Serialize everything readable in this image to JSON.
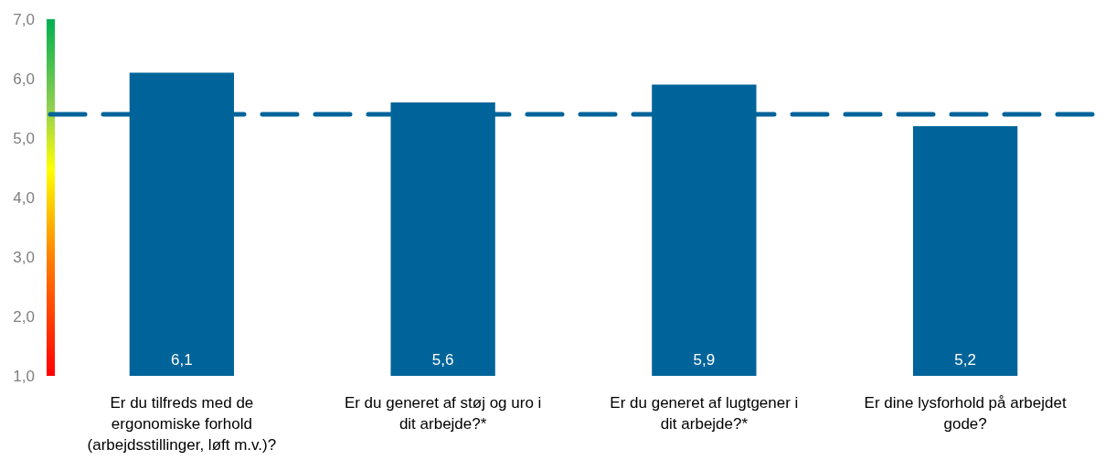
{
  "chart_data": {
    "type": "bar",
    "categories": [
      "Er du tilfreds med de ergonomiske forhold (arbejdsstillinger, løft m.v.)?",
      "Er du generet af støj og uro i dit arbejde?*",
      "Er du generet af lugtgener i dit arbejde?*",
      "Er dine lysforhold på arbejdet gode?"
    ],
    "values": [
      6.1,
      5.6,
      5.9,
      5.2
    ],
    "color": "#00649a",
    "value_labels": [
      "6,1",
      "5,6",
      "5,9",
      "5,2"
    ],
    "ylim": [
      1,
      7
    ],
    "yticks": [
      {
        "value": 1,
        "label": "1,0"
      },
      {
        "value": 2,
        "label": "2,0"
      },
      {
        "value": 3,
        "label": "3,0"
      },
      {
        "value": 4,
        "label": "4,0"
      },
      {
        "value": 5,
        "label": "5,0"
      },
      {
        "value": 6,
        "label": "6,0"
      },
      {
        "value": 7,
        "label": "7,0"
      }
    ],
    "ref_lines": [
      {
        "axis": "y",
        "value": 5.4,
        "color": "#00639a",
        "line_style": "dashed"
      }
    ]
  }
}
